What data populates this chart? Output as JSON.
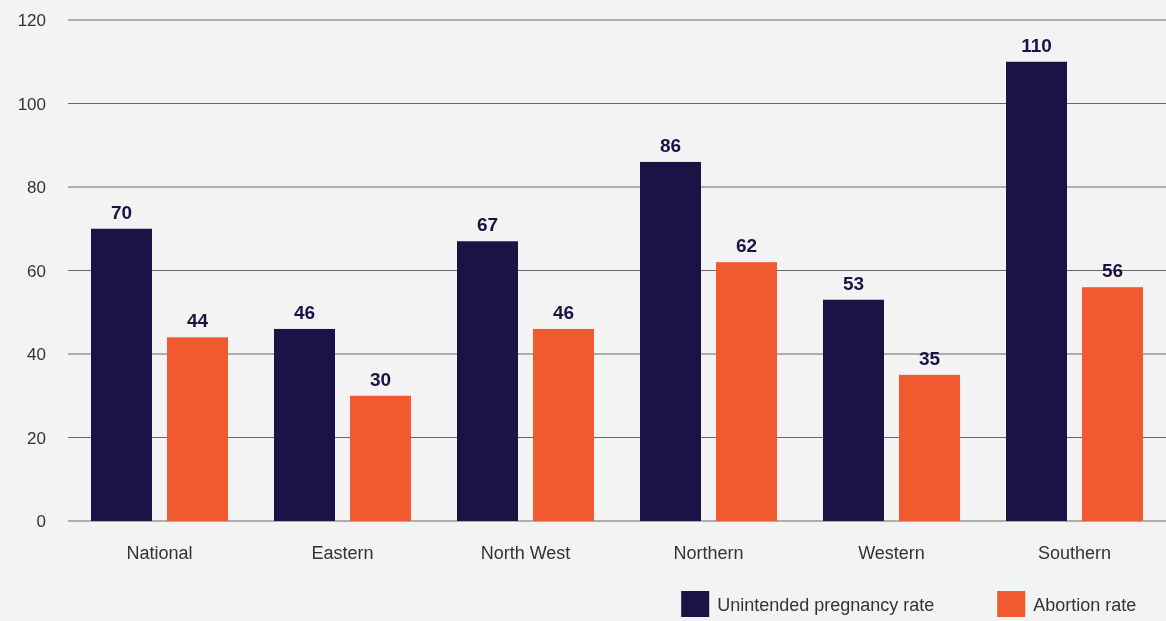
{
  "chart_data": {
    "type": "bar",
    "categories": [
      "National",
      "Eastern",
      "North West",
      "Northern",
      "Western",
      "Southern"
    ],
    "series": [
      {
        "name": "Unintended pregnancy rate",
        "color": "#1a1446",
        "values": [
          70,
          46,
          67,
          86,
          53,
          110
        ]
      },
      {
        "name": "Abortion rate",
        "color": "#f15a2f",
        "values": [
          44,
          30,
          46,
          62,
          35,
          56
        ]
      }
    ],
    "ylim": [
      0,
      120
    ],
    "yticks": [
      0,
      20,
      40,
      60,
      80,
      100,
      120
    ],
    "grid": "y",
    "legend": "bottom right",
    "data_labels": true
  }
}
